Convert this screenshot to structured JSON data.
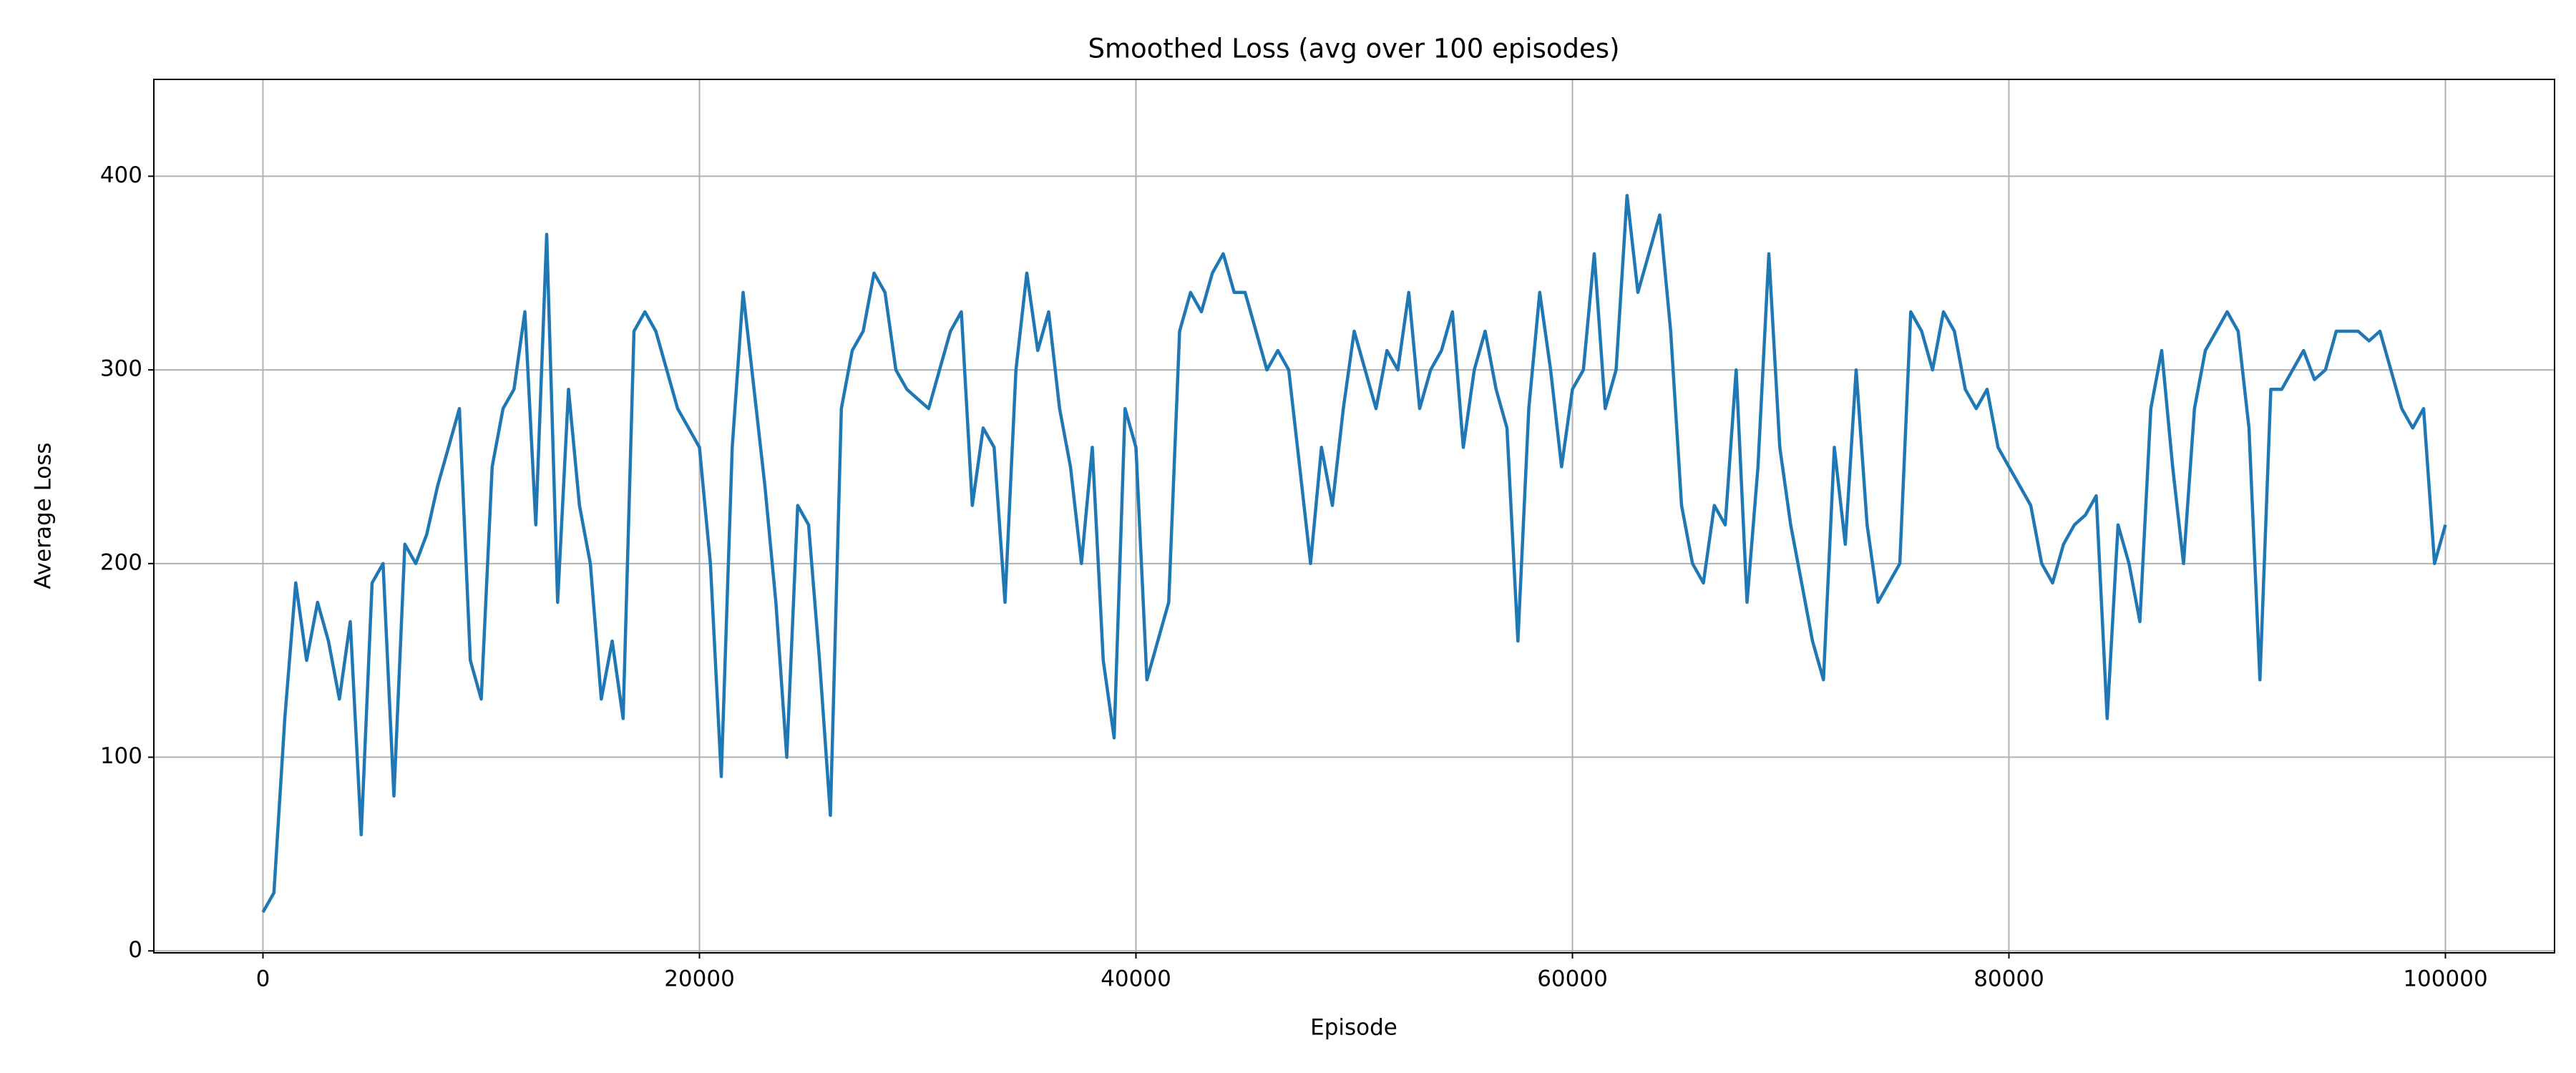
{
  "chart_data": {
    "type": "line",
    "title": "Smoothed Loss (avg over 100 episodes)",
    "x_label": "Episode",
    "y_label": "Average Loss",
    "x": [
      0,
      500,
      1000,
      1500,
      2000,
      2500,
      3000,
      3500,
      4000,
      4500,
      5000,
      5500,
      6000,
      6500,
      7000,
      7500,
      8000,
      8500,
      9000,
      9500,
      10000,
      10500,
      11000,
      11500,
      12000,
      12500,
      13000,
      13500,
      14000,
      14500,
      15000,
      15500,
      16000,
      16500,
      17000,
      17500,
      18000,
      18500,
      19000,
      19500,
      20000,
      20500,
      21000,
      21500,
      22000,
      22500,
      23000,
      23500,
      24000,
      24500,
      25000,
      25500,
      26000,
      26500,
      27000,
      27500,
      28000,
      28500,
      29000,
      29500,
      30000,
      30500,
      31000,
      31500,
      32000,
      32500,
      33000,
      33500,
      34000,
      34500,
      35000,
      35500,
      36000,
      36500,
      37000,
      37500,
      38000,
      38500,
      39000,
      39500,
      40000,
      40500,
      41000,
      41500,
      42000,
      42500,
      43000,
      43500,
      44000,
      44500,
      45000,
      45500,
      46000,
      46500,
      47000,
      47500,
      48000,
      48500,
      49000,
      49500,
      50000,
      50500,
      51000,
      51500,
      52000,
      52500,
      53000,
      53500,
      54000,
      54500,
      55000,
      55500,
      56000,
      56500,
      57000,
      57500,
      58000,
      58500,
      59000,
      59500,
      60000,
      60500,
      61000,
      61500,
      62000,
      62500,
      63000,
      63500,
      64000,
      64500,
      65000,
      65500,
      66000,
      66500,
      67000,
      67500,
      68000,
      68500,
      69000,
      69500,
      70000,
      70500,
      71000,
      71500,
      72000,
      72500,
      73000,
      73500,
      74000,
      74500,
      75000,
      75500,
      76000,
      76500,
      77000,
      77500,
      78000,
      78500,
      79000,
      79500,
      80000,
      80500,
      81000,
      81500,
      82000,
      82500,
      83000,
      83500,
      84000,
      84500,
      85000,
      85500,
      86000,
      86500,
      87000,
      87500,
      88000,
      88500,
      89000,
      89500,
      90000,
      90500,
      91000,
      91500,
      92000,
      92500,
      93000,
      93500,
      94000,
      94500,
      95000,
      95500,
      96000,
      96500,
      97000,
      97500,
      98000,
      98500,
      99000,
      99500,
      100000
    ],
    "values": [
      20,
      30,
      120,
      190,
      150,
      180,
      160,
      130,
      170,
      60,
      190,
      200,
      80,
      210,
      200,
      215,
      240,
      260,
      280,
      150,
      130,
      250,
      280,
      290,
      330,
      220,
      370,
      180,
      290,
      230,
      200,
      130,
      160,
      120,
      320,
      330,
      320,
      300,
      280,
      270,
      260,
      200,
      90,
      260,
      340,
      290,
      240,
      180,
      100,
      230,
      220,
      150,
      70,
      280,
      310,
      320,
      350,
      340,
      300,
      290,
      285,
      280,
      300,
      320,
      330,
      230,
      270,
      260,
      180,
      300,
      350,
      310,
      330,
      280,
      250,
      200,
      260,
      150,
      110,
      280,
      260,
      140,
      160,
      180,
      320,
      340,
      330,
      350,
      360,
      340,
      340,
      320,
      300,
      310,
      300,
      250,
      200,
      260,
      230,
      280,
      320,
      300,
      280,
      310,
      300,
      340,
      280,
      300,
      310,
      330,
      260,
      300,
      320,
      290,
      270,
      160,
      280,
      340,
      300,
      250,
      290,
      300,
      360,
      280,
      300,
      390,
      340,
      360,
      380,
      320,
      230,
      200,
      190,
      230,
      220,
      300,
      180,
      250,
      360,
      260,
      220,
      190,
      160,
      140,
      260,
      210,
      300,
      220,
      180,
      190,
      200,
      330,
      320,
      300,
      330,
      320,
      290,
      280,
      290,
      260,
      250,
      240,
      230,
      200,
      190,
      210,
      220,
      225,
      235,
      120,
      220,
      200,
      170,
      280,
      310,
      250,
      200,
      280,
      310,
      320,
      330,
      320,
      270,
      140,
      290,
      290,
      300,
      310,
      295,
      300,
      320,
      320,
      320,
      315,
      320,
      300,
      280,
      270,
      280,
      200,
      220
    ],
    "color": "#1f77b4",
    "xlim": [
      -5000,
      105000
    ],
    "xticks": [
      0,
      20000,
      40000,
      60000,
      80000,
      100000
    ],
    "ylim": [
      -1,
      450
    ],
    "yticks": [
      0,
      100,
      200,
      300,
      400
    ],
    "grid": true
  }
}
